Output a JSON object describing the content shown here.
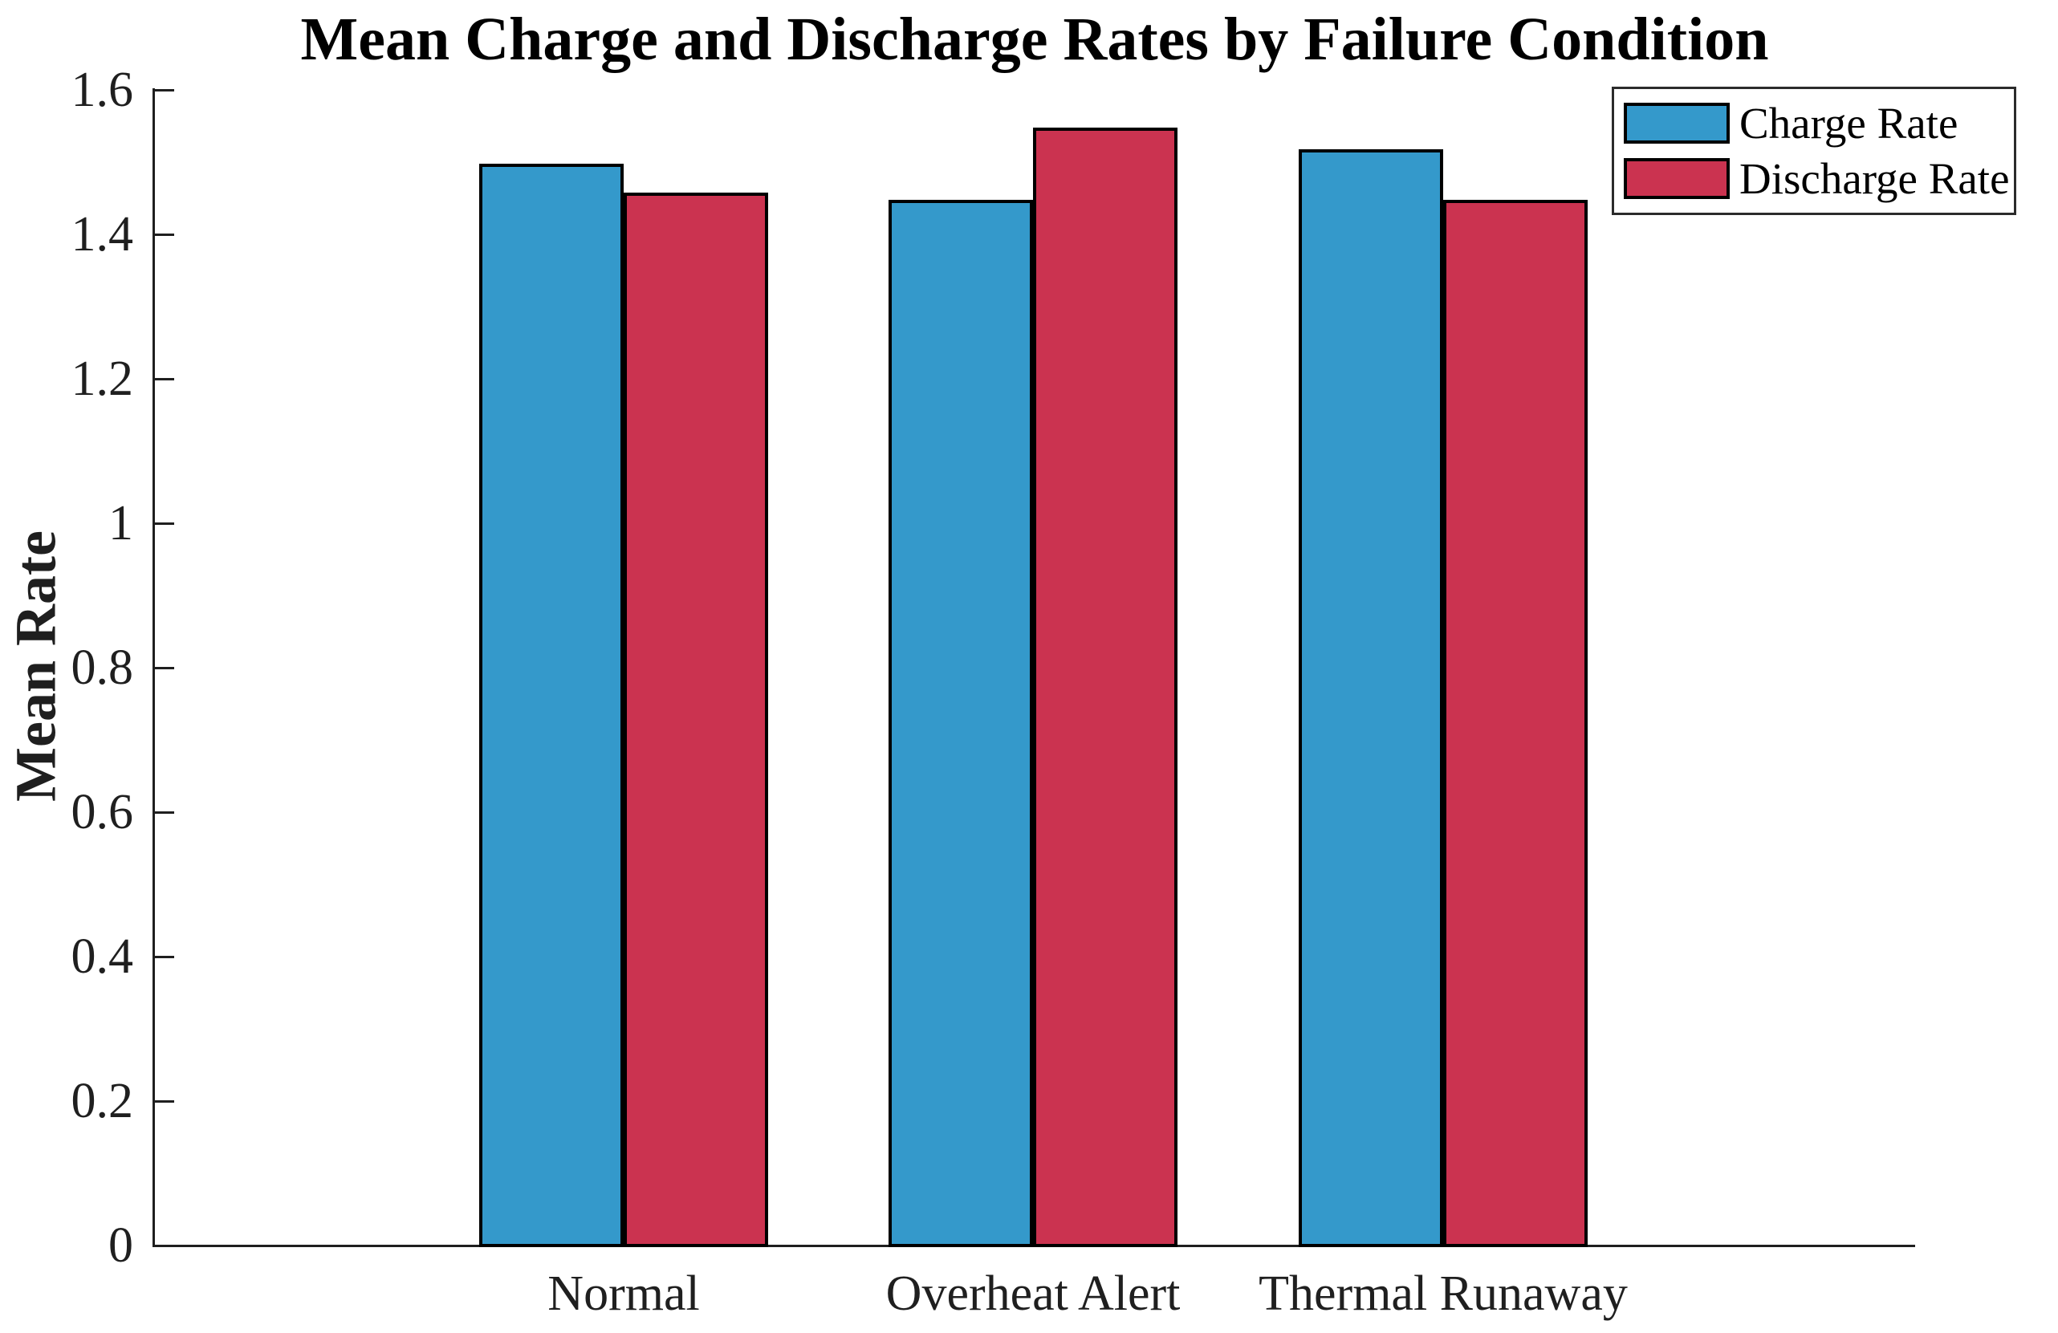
{
  "chart_data": {
    "type": "bar",
    "title": "Mean Charge and Discharge Rates by Failure Condition",
    "ylabel": "Mean Rate",
    "xlabel": "",
    "categories": [
      "Normal",
      "Overheat Alert",
      "Thermal Runaway"
    ],
    "series": [
      {
        "name": "Charge Rate",
        "color": "#3499CB",
        "values": [
          1.5,
          1.45,
          1.52
        ]
      },
      {
        "name": "Discharge Rate",
        "color": "#CB3350",
        "values": [
          1.46,
          1.55,
          1.45
        ]
      }
    ],
    "ylim": [
      0,
      1.6
    ],
    "yticks": [
      0,
      0.2,
      0.4,
      0.6,
      0.8,
      1.0,
      1.2,
      1.4,
      1.6
    ],
    "ytick_labels": [
      "0",
      "0.2",
      "0.4",
      "0.6",
      "0.8",
      "1",
      "1.2",
      "1.4",
      "1.6"
    ],
    "grid": false,
    "legend_position": "northeast",
    "bar_edge_color": "#000000",
    "axis_color": "#1F1F1F",
    "background_color": "#FFFFFF"
  }
}
